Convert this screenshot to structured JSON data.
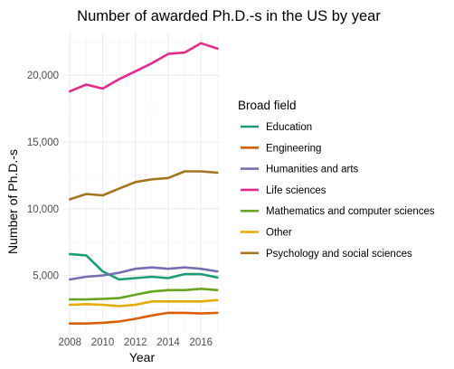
{
  "chart_data": {
    "type": "line",
    "title": "Number of awarded Ph.D.-s in the US by year",
    "xlabel": "Year",
    "ylabel": "Number of Ph.D.-s",
    "x": [
      2008,
      2009,
      2010,
      2011,
      2012,
      2013,
      2014,
      2015,
      2016,
      2017
    ],
    "xticks": [
      2008,
      2010,
      2012,
      2014,
      2016
    ],
    "xtick_labels": [
      "2008",
      "2010",
      "2012",
      "2014",
      "2016"
    ],
    "yticks": [
      5000,
      10000,
      15000,
      20000
    ],
    "ytick_labels": [
      "5,000",
      "10,000",
      "15,000",
      "20,000"
    ],
    "xlim": [
      2007.6,
      2017.2
    ],
    "ylim": [
      700,
      23200
    ],
    "grid": true,
    "legend_position": "right",
    "legend_title": "Broad field",
    "series": [
      {
        "name": "Education",
        "color": "#1b9e77",
        "values": [
          6600,
          6500,
          5300,
          4700,
          4800,
          4900,
          4800,
          5100,
          5100,
          4850
        ]
      },
      {
        "name": "Engineering",
        "color": "#d95f02",
        "values": [
          1400,
          1400,
          1450,
          1550,
          1750,
          2000,
          2200,
          2200,
          2150,
          2200
        ]
      },
      {
        "name": "Humanities and arts",
        "color": "#7570b3",
        "values": [
          4700,
          4900,
          5000,
          5200,
          5500,
          5600,
          5500,
          5600,
          5500,
          5300
        ]
      },
      {
        "name": "Life sciences",
        "color": "#e7298a",
        "values": [
          18800,
          19300,
          19000,
          19700,
          20300,
          20900,
          21600,
          21700,
          22400,
          22000
        ]
      },
      {
        "name": "Mathematics and computer sciences",
        "color": "#66a61e",
        "values": [
          3200,
          3200,
          3250,
          3300,
          3550,
          3800,
          3900,
          3900,
          4000,
          3900
        ]
      },
      {
        "name": "Other",
        "color": "#e6ab02",
        "values": [
          2800,
          2850,
          2800,
          2700,
          2800,
          3050,
          3050,
          3050,
          3050,
          3150
        ]
      },
      {
        "name": "Psychology and social sciences",
        "color": "#a6761d",
        "values": [
          10700,
          11100,
          11000,
          11500,
          12000,
          12200,
          12300,
          12800,
          12800,
          12700
        ]
      }
    ]
  }
}
